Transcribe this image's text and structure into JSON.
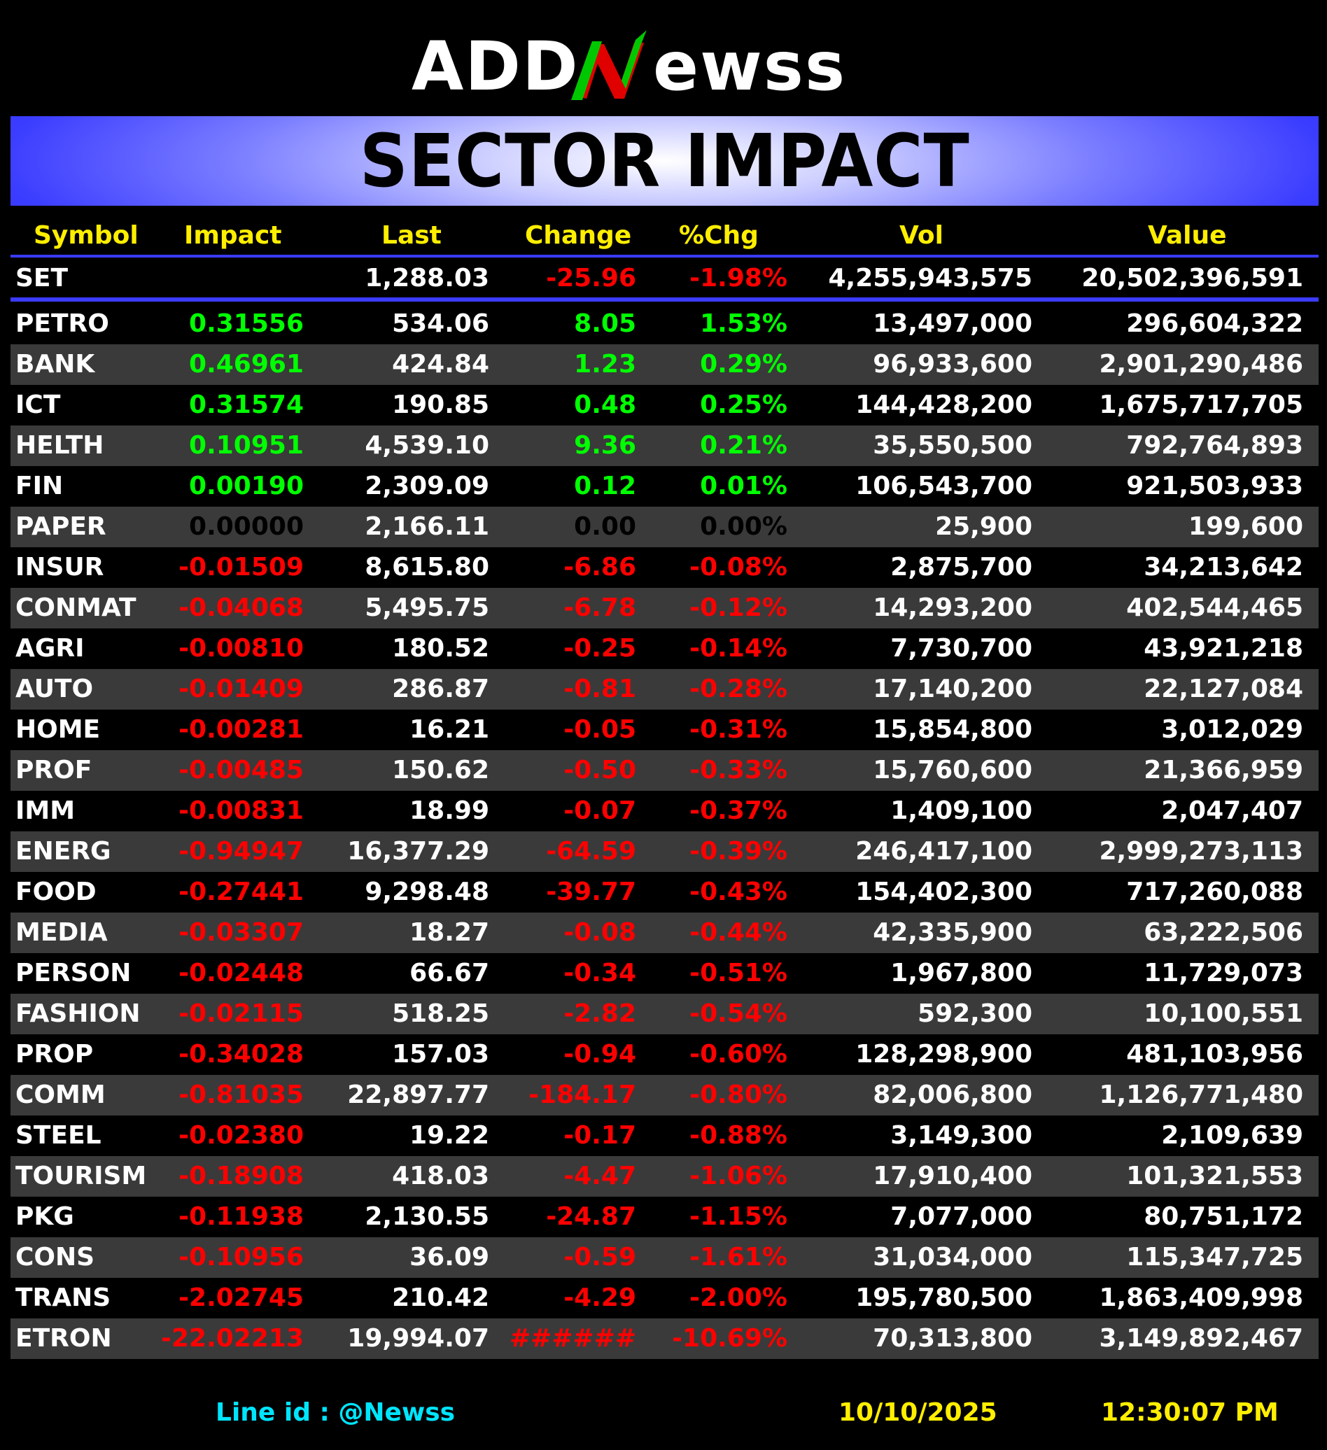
{
  "brand": {
    "logo_text": "ADDNewss",
    "logo_colors": {
      "text": "#ffffff",
      "accent_green": "#00c800",
      "accent_red": "#e00000"
    }
  },
  "banner": {
    "title": "SECTOR IMPACT"
  },
  "table": {
    "headers": {
      "symbol": "Symbol",
      "impact": "Impact",
      "last": "Last",
      "change": "Change",
      "pct": "%Chg",
      "vol": "Vol",
      "value": "Value"
    },
    "index_row": {
      "symbol": "SET",
      "impact": "",
      "last": "1,288.03",
      "change": "-25.96",
      "pct": "-1.98%",
      "vol": "4,255,943,575",
      "value": "20,502,396,591",
      "direction": "neg"
    },
    "rows": [
      {
        "symbol": "PETRO",
        "impact": "0.31556",
        "last": "534.06",
        "change": "8.05",
        "pct": "1.53%",
        "vol": "13,497,000",
        "value": "296,604,322",
        "direction": "pos"
      },
      {
        "symbol": "BANK",
        "impact": "0.46961",
        "last": "424.84",
        "change": "1.23",
        "pct": "0.29%",
        "vol": "96,933,600",
        "value": "2,901,290,486",
        "direction": "pos"
      },
      {
        "symbol": "ICT",
        "impact": "0.31574",
        "last": "190.85",
        "change": "0.48",
        "pct": "0.25%",
        "vol": "144,428,200",
        "value": "1,675,717,705",
        "direction": "pos"
      },
      {
        "symbol": "HELTH",
        "impact": "0.10951",
        "last": "4,539.10",
        "change": "9.36",
        "pct": "0.21%",
        "vol": "35,550,500",
        "value": "792,764,893",
        "direction": "pos"
      },
      {
        "symbol": "FIN",
        "impact": "0.00190",
        "last": "2,309.09",
        "change": "0.12",
        "pct": "0.01%",
        "vol": "106,543,700",
        "value": "921,503,933",
        "direction": "pos"
      },
      {
        "symbol": "PAPER",
        "impact": "0.00000",
        "last": "2,166.11",
        "change": "0.00",
        "pct": "0.00%",
        "vol": "25,900",
        "value": "199,600",
        "direction": "zero"
      },
      {
        "symbol": "INSUR",
        "impact": "-0.01509",
        "last": "8,615.80",
        "change": "-6.86",
        "pct": "-0.08%",
        "vol": "2,875,700",
        "value": "34,213,642",
        "direction": "neg"
      },
      {
        "symbol": "CONMAT",
        "impact": "-0.04068",
        "last": "5,495.75",
        "change": "-6.78",
        "pct": "-0.12%",
        "vol": "14,293,200",
        "value": "402,544,465",
        "direction": "neg"
      },
      {
        "symbol": "AGRI",
        "impact": "-0.00810",
        "last": "180.52",
        "change": "-0.25",
        "pct": "-0.14%",
        "vol": "7,730,700",
        "value": "43,921,218",
        "direction": "neg"
      },
      {
        "symbol": "AUTO",
        "impact": "-0.01409",
        "last": "286.87",
        "change": "-0.81",
        "pct": "-0.28%",
        "vol": "17,140,200",
        "value": "22,127,084",
        "direction": "neg"
      },
      {
        "symbol": "HOME",
        "impact": "-0.00281",
        "last": "16.21",
        "change": "-0.05",
        "pct": "-0.31%",
        "vol": "15,854,800",
        "value": "3,012,029",
        "direction": "neg"
      },
      {
        "symbol": "PROF",
        "impact": "-0.00485",
        "last": "150.62",
        "change": "-0.50",
        "pct": "-0.33%",
        "vol": "15,760,600",
        "value": "21,366,959",
        "direction": "neg"
      },
      {
        "symbol": "IMM",
        "impact": "-0.00831",
        "last": "18.99",
        "change": "-0.07",
        "pct": "-0.37%",
        "vol": "1,409,100",
        "value": "2,047,407",
        "direction": "neg"
      },
      {
        "symbol": "ENERG",
        "impact": "-0.94947",
        "last": "16,377.29",
        "change": "-64.59",
        "pct": "-0.39%",
        "vol": "246,417,100",
        "value": "2,999,273,113",
        "direction": "neg"
      },
      {
        "symbol": "FOOD",
        "impact": "-0.27441",
        "last": "9,298.48",
        "change": "-39.77",
        "pct": "-0.43%",
        "vol": "154,402,300",
        "value": "717,260,088",
        "direction": "neg"
      },
      {
        "symbol": "MEDIA",
        "impact": "-0.03307",
        "last": "18.27",
        "change": "-0.08",
        "pct": "-0.44%",
        "vol": "42,335,900",
        "value": "63,222,506",
        "direction": "neg"
      },
      {
        "symbol": "PERSON",
        "impact": "-0.02448",
        "last": "66.67",
        "change": "-0.34",
        "pct": "-0.51%",
        "vol": "1,967,800",
        "value": "11,729,073",
        "direction": "neg"
      },
      {
        "symbol": "FASHION",
        "impact": "-0.02115",
        "last": "518.25",
        "change": "-2.82",
        "pct": "-0.54%",
        "vol": "592,300",
        "value": "10,100,551",
        "direction": "neg"
      },
      {
        "symbol": "PROP",
        "impact": "-0.34028",
        "last": "157.03",
        "change": "-0.94",
        "pct": "-0.60%",
        "vol": "128,298,900",
        "value": "481,103,956",
        "direction": "neg"
      },
      {
        "symbol": "COMM",
        "impact": "-0.81035",
        "last": "22,897.77",
        "change": "-184.17",
        "pct": "-0.80%",
        "vol": "82,006,800",
        "value": "1,126,771,480",
        "direction": "neg"
      },
      {
        "symbol": "STEEL",
        "impact": "-0.02380",
        "last": "19.22",
        "change": "-0.17",
        "pct": "-0.88%",
        "vol": "3,149,300",
        "value": "2,109,639",
        "direction": "neg"
      },
      {
        "symbol": "TOURISM",
        "impact": "-0.18908",
        "last": "418.03",
        "change": "-4.47",
        "pct": "-1.06%",
        "vol": "17,910,400",
        "value": "101,321,553",
        "direction": "neg"
      },
      {
        "symbol": "PKG",
        "impact": "-0.11938",
        "last": "2,130.55",
        "change": "-24.87",
        "pct": "-1.15%",
        "vol": "7,077,000",
        "value": "80,751,172",
        "direction": "neg"
      },
      {
        "symbol": "CONS",
        "impact": "-0.10956",
        "last": "36.09",
        "change": "-0.59",
        "pct": "-1.61%",
        "vol": "31,034,000",
        "value": "115,347,725",
        "direction": "neg"
      },
      {
        "symbol": "TRANS",
        "impact": "-2.02745",
        "last": "210.42",
        "change": "-4.29",
        "pct": "-2.00%",
        "vol": "195,780,500",
        "value": "1,863,409,998",
        "direction": "neg"
      },
      {
        "symbol": "ETRON",
        "impact": "-22.02213",
        "last": "19,994.07",
        "change": "######",
        "pct": "-10.69%",
        "vol": "70,313,800",
        "value": "3,149,892,467",
        "direction": "neg"
      }
    ]
  },
  "footer": {
    "line_id": "Line id  : @Newss",
    "date": "10/10/2025",
    "time": "12:30:07 PM"
  },
  "colors": {
    "background": "#000000",
    "header_text": "#ffee00",
    "positive": "#00ff00",
    "negative": "#ff0000",
    "alt_row": "#3a3a3a",
    "divider": "#3b3bff",
    "banner_blue": "#3333ff",
    "footer_line_id": "#00e5ff"
  }
}
